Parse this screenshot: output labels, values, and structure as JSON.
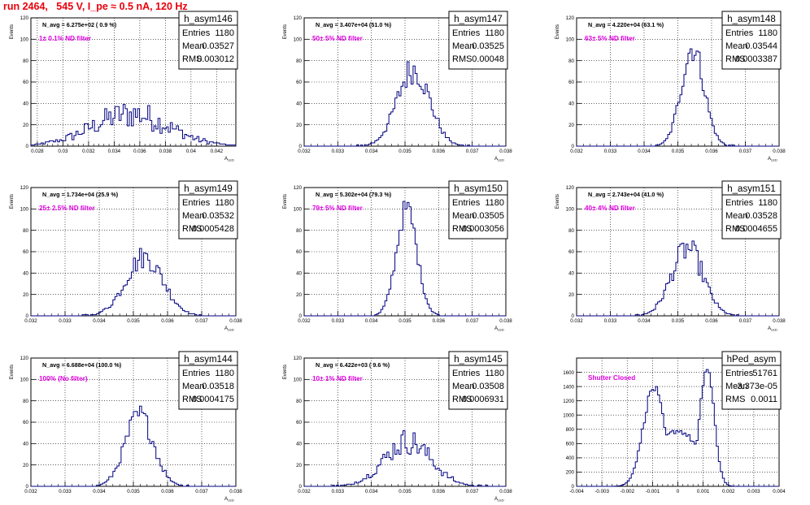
{
  "header": {
    "run_title": "run 2464,   545 V, I_pe ≈ 0.5 nA, 120 Hz"
  },
  "stats_labels": {
    "entries": "Entries",
    "mean": "Mean",
    "rms": "RMS"
  },
  "colors": {
    "title": "#e8000b",
    "filter_label": "#e000e0",
    "histogram": "#000080",
    "grid": "#000000"
  },
  "chart_data": [
    {
      "type": "histogram",
      "name": "h_asym146",
      "navg": "N_avg = 6.275e+02 ( 0.9 %)",
      "filter": "1± 0.1% ND filter",
      "ylabel": "Events",
      "xlabel": "A",
      "xlim": [
        0.0275,
        0.0435
      ],
      "ylim": [
        0,
        120
      ],
      "xticks": [
        "0.028",
        "0.03",
        "0.032",
        "0.034",
        "0.036",
        "0.038",
        "0.04",
        "0.042"
      ],
      "xtick_values": [
        0.028,
        0.03,
        0.032,
        0.034,
        0.036,
        0.038,
        0.04,
        0.042
      ],
      "yticks": [
        "0",
        "20",
        "40",
        "60",
        "80",
        "100",
        "120"
      ],
      "stats": {
        "entries": "1180",
        "mean": "0.03527",
        "rms": "0.003012"
      },
      "shape": {
        "center": 0.03527,
        "sigma": 0.003012,
        "peak": 30,
        "noise": 0.45
      }
    },
    {
      "type": "histogram",
      "name": "h_asym147",
      "navg": "N_avg = 3.407e+04 (51.0 %)",
      "filter": "50± 5% ND filter",
      "ylabel": "Events",
      "xlabel": "A",
      "xlim": [
        0.032,
        0.038
      ],
      "ylim": [
        0,
        120
      ],
      "xticks": [
        "0.032",
        "0.033",
        "0.034",
        "0.035",
        "0.036",
        "0.037",
        "0.038"
      ],
      "xtick_values": [
        0.032,
        0.033,
        0.034,
        0.035,
        0.036,
        0.037,
        0.038
      ],
      "yticks": [
        "0",
        "20",
        "40",
        "60",
        "80",
        "100",
        "120"
      ],
      "stats": {
        "entries": "1180",
        "mean": "0.03525",
        "rms": "0.00048"
      },
      "shape": {
        "center": 0.03525,
        "sigma": 0.00048,
        "peak": 72,
        "noise": 0.2
      }
    },
    {
      "type": "histogram",
      "name": "h_asym148",
      "navg": "N_avg = 4.220e+04 (63.1 %)",
      "filter": "63± 5% ND filter",
      "ylabel": "Events",
      "xlabel": "A",
      "xlim": [
        0.032,
        0.038
      ],
      "ylim": [
        0,
        120
      ],
      "xticks": [
        "0.032",
        "0.033",
        "0.034",
        "0.035",
        "0.036",
        "0.037",
        "0.038"
      ],
      "xtick_values": [
        0.032,
        0.033,
        0.034,
        0.035,
        0.036,
        0.037,
        0.038
      ],
      "yticks": [
        "0",
        "20",
        "40",
        "60",
        "80",
        "100",
        "120"
      ],
      "stats": {
        "entries": "1180",
        "mean": "0.03544",
        "rms": "0.0003387"
      },
      "shape": {
        "center": 0.03544,
        "sigma": 0.0003387,
        "peak": 92,
        "noise": 0.15
      }
    },
    {
      "type": "histogram",
      "name": "h_asym149",
      "navg": "N_avg = 1.734e+04 (25.9 %)",
      "filter": "25± 2.5% ND filter",
      "ylabel": "Events",
      "xlabel": "A",
      "xlim": [
        0.032,
        0.038
      ],
      "ylim": [
        0,
        120
      ],
      "xticks": [
        "0.032",
        "0.033",
        "0.034",
        "0.035",
        "0.036",
        "0.037",
        "0.038"
      ],
      "xtick_values": [
        0.032,
        0.033,
        0.034,
        0.035,
        0.036,
        0.037,
        0.038
      ],
      "yticks": [
        "0",
        "20",
        "40",
        "60",
        "80",
        "100",
        "120"
      ],
      "stats": {
        "entries": "1180",
        "mean": "0.03532",
        "rms": "0.0005428"
      },
      "shape": {
        "center": 0.03532,
        "sigma": 0.0005428,
        "peak": 55,
        "noise": 0.2
      }
    },
    {
      "type": "histogram",
      "name": "h_asym150",
      "navg": "N_avg = 5.302e+04 (79.3 %)",
      "filter": "79± 5% ND filter",
      "ylabel": "Events",
      "xlabel": "A",
      "xlim": [
        0.032,
        0.038
      ],
      "ylim": [
        0,
        120
      ],
      "xticks": [
        "0.032",
        "0.033",
        "0.034",
        "0.035",
        "0.036",
        "0.037",
        "0.038"
      ],
      "xtick_values": [
        0.032,
        0.033,
        0.034,
        0.035,
        0.036,
        0.037,
        0.038
      ],
      "yticks": [
        "0",
        "20",
        "40",
        "60",
        "80",
        "100",
        "120"
      ],
      "stats": {
        "entries": "1180",
        "mean": "0.03505",
        "rms": "0.0003056"
      },
      "shape": {
        "center": 0.03505,
        "sigma": 0.0003056,
        "peak": 100,
        "noise": 0.12
      }
    },
    {
      "type": "histogram",
      "name": "h_asym151",
      "navg": "N_avg = 2.743e+04 (41.0 %)",
      "filter": "40± 4% ND filter",
      "ylabel": "Events",
      "xlabel": "A",
      "xlim": [
        0.032,
        0.038
      ],
      "ylim": [
        0,
        120
      ],
      "xticks": [
        "0.032",
        "0.033",
        "0.034",
        "0.035",
        "0.036",
        "0.037",
        "0.038"
      ],
      "xtick_values": [
        0.032,
        0.033,
        0.034,
        0.035,
        0.036,
        0.037,
        0.038
      ],
      "yticks": [
        "0",
        "20",
        "40",
        "60",
        "80",
        "100",
        "120"
      ],
      "stats": {
        "entries": "1180",
        "mean": "0.03528",
        "rms": "0.0004655"
      },
      "shape": {
        "center": 0.03528,
        "sigma": 0.0004655,
        "peak": 63,
        "noise": 0.2
      }
    },
    {
      "type": "histogram",
      "name": "h_asym144",
      "navg": "N_avg = 6.688e+04 (100.0 %)",
      "filter": "100% (No filter)",
      "ylabel": "Events",
      "xlabel": "A",
      "xlim": [
        0.032,
        0.038
      ],
      "ylim": [
        0,
        120
      ],
      "xticks": [
        "0.032",
        "0.033",
        "0.034",
        "0.035",
        "0.036",
        "0.037",
        "0.038"
      ],
      "xtick_values": [
        0.032,
        0.033,
        0.034,
        0.035,
        0.036,
        0.037,
        0.038
      ],
      "yticks": [
        "0",
        "20",
        "40",
        "60",
        "80",
        "100",
        "120"
      ],
      "stats": {
        "entries": "1180",
        "mean": "0.03518",
        "rms": "0.0004175"
      },
      "shape": {
        "center": 0.03518,
        "sigma": 0.0004175,
        "peak": 66,
        "noise": 0.18
      }
    },
    {
      "type": "histogram",
      "name": "h_asym145",
      "navg": "N_avg = 6.422e+03 ( 9.6 %)",
      "filter": "10± 1% ND filter",
      "ylabel": "Events",
      "xlabel": "A",
      "xlim": [
        0.032,
        0.038
      ],
      "ylim": [
        0,
        120
      ],
      "xticks": [
        "0.032",
        "0.033",
        "0.034",
        "0.035",
        "0.036",
        "0.037",
        "0.038"
      ],
      "xtick_values": [
        0.032,
        0.033,
        0.034,
        0.035,
        0.036,
        0.037,
        0.038
      ],
      "yticks": [
        "0",
        "20",
        "40",
        "60",
        "80",
        "100",
        "120"
      ],
      "stats": {
        "entries": "1180",
        "mean": "0.03508",
        "rms": "0.0006931"
      },
      "shape": {
        "center": 0.03508,
        "sigma": 0.0006931,
        "peak": 42,
        "noise": 0.3
      }
    },
    {
      "type": "histogram",
      "name": "hPed_asym",
      "navg": "",
      "filter": "Shutter Closed",
      "ylabel": "",
      "xlabel": "",
      "xlim": [
        -0.004,
        0.004
      ],
      "ylim": [
        0,
        1800
      ],
      "xticks": [
        "-0.004",
        "-0.003",
        "-0.002",
        "-0.001",
        "0",
        "0.001",
        "0.002",
        "0.003",
        "0.004"
      ],
      "xtick_values": [
        -0.004,
        -0.003,
        -0.002,
        -0.001,
        0,
        0.001,
        0.002,
        0.003,
        0.004
      ],
      "yticks": [
        "0",
        "200",
        "400",
        "600",
        "800",
        "1000",
        "1200",
        "1400",
        "1600"
      ],
      "stats": {
        "entries": "51761",
        "mean": "-3.373e-05",
        "rms": "0.0011"
      },
      "shape": {
        "peaks": [
          [
            -0.00095,
            0.00042,
            1380
          ],
          [
            0.00115,
            0.00028,
            1660
          ]
        ],
        "floor": 780,
        "noise": 0.05
      }
    }
  ]
}
